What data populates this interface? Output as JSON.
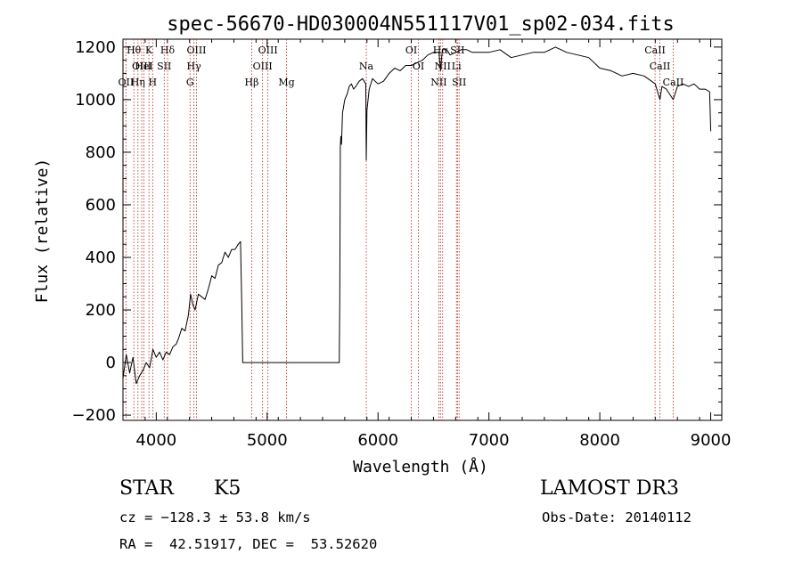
{
  "chart_data": {
    "type": "line",
    "title": "spec-56670-HD030004N551117V01_sp02-034.fits",
    "xlabel": "Wavelength (Å)",
    "ylabel": "Flux (relative)",
    "xlim": [
      3700,
      9100
    ],
    "ylim": [
      -220,
      1230
    ],
    "x_ticks": [
      4000,
      5000,
      6000,
      7000,
      8000,
      9000
    ],
    "x_tick_labels": [
      "4000",
      "5000",
      "6000",
      "7000",
      "8000",
      "9000"
    ],
    "y_ticks": [
      -200,
      0,
      200,
      400,
      600,
      800,
      1000,
      1200
    ],
    "y_tick_labels": [
      "−200",
      "0",
      "200",
      "400",
      "600",
      "800",
      "1000",
      "1200"
    ],
    "series": [
      {
        "x": [
          3700,
          3730,
          3760,
          3790,
          3820,
          3850,
          3880,
          3910,
          3940,
          3970,
          4000,
          4030,
          4060,
          4090,
          4120,
          4150,
          4180,
          4200,
          4230,
          4260,
          4290,
          4310,
          4330,
          4350,
          4380,
          4410,
          4440,
          4470,
          4500,
          4530,
          4560,
          4590,
          4620,
          4650,
          4680,
          4710,
          4740,
          4760,
          4770,
          4780,
          5650,
          5655,
          5660,
          5665,
          5670,
          5680,
          5700,
          5720,
          5740,
          5760,
          5780,
          5800,
          5830,
          5860,
          5890,
          5894,
          5900,
          5920,
          5950,
          6000,
          6050,
          6100,
          6150,
          6200,
          6250,
          6300,
          6350,
          6400,
          6450,
          6500,
          6550,
          6563,
          6580,
          6620,
          6650,
          6700,
          6750,
          6800,
          6850,
          6900,
          7000,
          7100,
          7200,
          7300,
          7400,
          7500,
          7600,
          7650,
          7700,
          7800,
          7900,
          8000,
          8100,
          8200,
          8300,
          8400,
          8500,
          8542,
          8560,
          8600,
          8662,
          8700,
          8750,
          8800,
          8850,
          8900,
          8950,
          8990,
          9000
        ],
        "y": [
          -60,
          30,
          -40,
          20,
          -80,
          -50,
          -30,
          0,
          -20,
          50,
          20,
          40,
          10,
          40,
          30,
          60,
          70,
          90,
          130,
          120,
          180,
          260,
          220,
          200,
          260,
          250,
          240,
          280,
          330,
          320,
          370,
          380,
          420,
          400,
          430,
          430,
          450,
          460,
          240,
          0,
          0,
          240,
          820,
          860,
          830,
          950,
          1000,
          1020,
          1050,
          1060,
          1040,
          1050,
          1070,
          1080,
          1060,
          770,
          960,
          1040,
          1080,
          1060,
          1070,
          1100,
          1120,
          1110,
          1130,
          1130,
          1140,
          1150,
          1170,
          1180,
          1180,
          1110,
          1190,
          1190,
          1170,
          1180,
          1190,
          1190,
          1180,
          1180,
          1180,
          1190,
          1160,
          1170,
          1180,
          1180,
          1200,
          1190,
          1180,
          1170,
          1160,
          1120,
          1110,
          1090,
          1100,
          1090,
          1060,
          1000,
          1050,
          1040,
          1000,
          1050,
          1060,
          1050,
          1060,
          1040,
          1040,
          1030,
          880
        ]
      }
    ],
    "line_marks": [
      {
        "wl": 3727,
        "row": 2,
        "label": "OII"
      },
      {
        "wl": 3798,
        "row": 0,
        "label": "Hθ"
      },
      {
        "wl": 3835,
        "row": 2,
        "label": "Hη"
      },
      {
        "wl": 3869,
        "row": 1,
        "label": "OIII"
      },
      {
        "wl": 3889,
        "row": 1,
        "label": "HeI"
      },
      {
        "wl": 3934,
        "row": 0,
        "label": "K"
      },
      {
        "wl": 3968,
        "row": 2,
        "label": "H"
      },
      {
        "wl": 4072,
        "row": 1,
        "label": "SII"
      },
      {
        "wl": 4102,
        "row": 0,
        "label": "Hδ"
      },
      {
        "wl": 4305,
        "row": 2,
        "label": "G"
      },
      {
        "wl": 4340,
        "row": 1,
        "label": "Hγ"
      },
      {
        "wl": 4363,
        "row": 0,
        "label": "OIII"
      },
      {
        "wl": 4861,
        "row": 2,
        "label": "Hβ"
      },
      {
        "wl": 4959,
        "row": 1,
        "label": "OIII"
      },
      {
        "wl": 5007,
        "row": 0,
        "label": "OIII"
      },
      {
        "wl": 5175,
        "row": 2,
        "label": "Mg"
      },
      {
        "wl": 5894,
        "row": 1,
        "label": "Na"
      },
      {
        "wl": 6300,
        "row": 0,
        "label": "OI"
      },
      {
        "wl": 6364,
        "row": 1,
        "label": "OI"
      },
      {
        "wl": 6548,
        "row": 2,
        "label": "NII"
      },
      {
        "wl": 6563,
        "row": 0,
        "label": "Hα"
      },
      {
        "wl": 6583,
        "row": 1,
        "label": "NII"
      },
      {
        "wl": 6707,
        "row": 1,
        "label": "Li"
      },
      {
        "wl": 6716,
        "row": 0,
        "label": "SII"
      },
      {
        "wl": 6731,
        "row": 2,
        "label": "SII"
      },
      {
        "wl": 8498,
        "row": 0,
        "label": "CaII"
      },
      {
        "wl": 8542,
        "row": 1,
        "label": "CaII"
      },
      {
        "wl": 8662,
        "row": 2,
        "label": "CaII"
      }
    ]
  },
  "info": {
    "object_type": "STAR",
    "object_class": "K5",
    "survey": "LAMOST DR3",
    "redshift": "cz = −128.3 ± 53.8 km/s",
    "obs_date": "Obs-Date: 20140112",
    "coords": "RA =  42.51917, DEC =  53.52620"
  },
  "colors": {
    "line_mark": "#b22222",
    "spectrum": "#000000"
  }
}
